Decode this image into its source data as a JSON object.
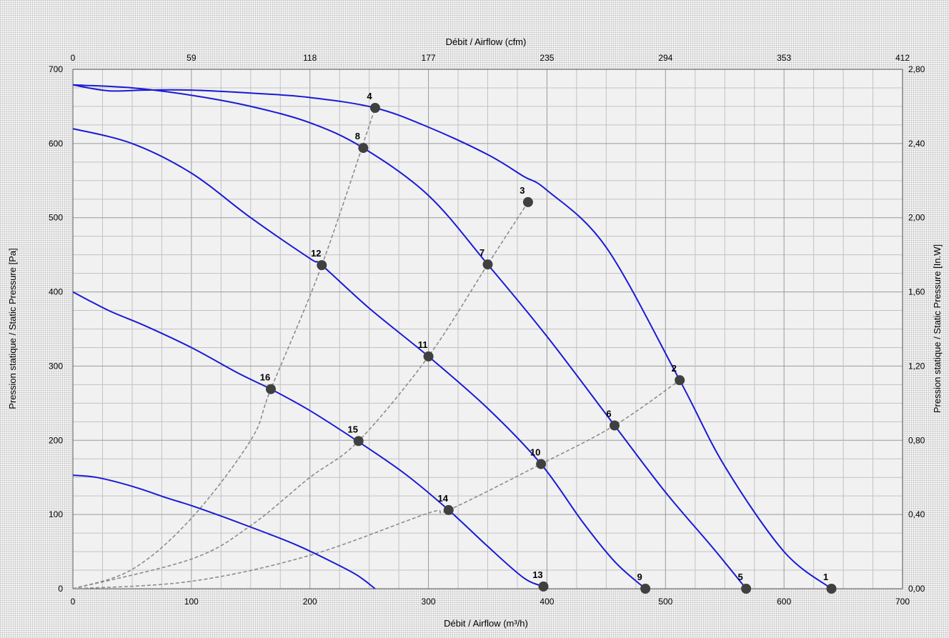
{
  "chart_data": {
    "type": "line",
    "xlabel_bottom": "Débit / Airflow (m³/h)",
    "xlabel_top": "Débit / Airflow (cfm)",
    "ylabel_left": "Pression statique / Static Pressure [Pa]",
    "ylabel_right": "Pression statique / Static Pressure [In.W]",
    "xlim": [
      0,
      700
    ],
    "ylim": [
      0,
      700
    ],
    "x_ticks": [
      "0",
      "100",
      "200",
      "300",
      "400",
      "500",
      "600",
      "700"
    ],
    "y_ticks": [
      "0",
      "100",
      "200",
      "300",
      "400",
      "500",
      "600",
      "700"
    ],
    "top_ticks": [
      "0",
      "59",
      "118",
      "177",
      "235",
      "294",
      "353",
      "412"
    ],
    "right_ticks": [
      "0,00",
      "0,40",
      "0,80",
      "1,20",
      "1,60",
      "2,00",
      "2,40",
      "2,80"
    ],
    "grid": true,
    "series": [
      {
        "values": [
          [
            0,
            679
          ],
          [
            30,
            671
          ],
          [
            60,
            672
          ],
          [
            100,
            672
          ],
          [
            150,
            668
          ],
          [
            200,
            662
          ],
          [
            255,
            648
          ],
          [
            300,
            622
          ],
          [
            350,
            585
          ],
          [
            380,
            556
          ],
          [
            400,
            537
          ],
          [
            450,
            460
          ],
          [
            512,
            281
          ],
          [
            550,
            165
          ],
          [
            600,
            50
          ],
          [
            640,
            0
          ]
        ]
      },
      {
        "values": [
          [
            0,
            679
          ],
          [
            50,
            675
          ],
          [
            100,
            665
          ],
          [
            150,
            650
          ],
          [
            200,
            628
          ],
          [
            245,
            594
          ],
          [
            300,
            530
          ],
          [
            350,
            437
          ],
          [
            400,
            340
          ],
          [
            457,
            220
          ],
          [
            500,
            130
          ],
          [
            540,
            55
          ],
          [
            568,
            0
          ]
        ]
      },
      {
        "values": [
          [
            0,
            620
          ],
          [
            50,
            600
          ],
          [
            100,
            560
          ],
          [
            150,
            500
          ],
          [
            200,
            445
          ],
          [
            210,
            436
          ],
          [
            250,
            378
          ],
          [
            300,
            313
          ],
          [
            350,
            243
          ],
          [
            395,
            168
          ],
          [
            430,
            90
          ],
          [
            458,
            35
          ],
          [
            483,
            0
          ]
        ]
      },
      {
        "values": [
          [
            0,
            400
          ],
          [
            30,
            375
          ],
          [
            60,
            355
          ],
          [
            100,
            325
          ],
          [
            140,
            290
          ],
          [
            167,
            269
          ],
          [
            200,
            240
          ],
          [
            240,
            199
          ],
          [
            280,
            155
          ],
          [
            317,
            106
          ],
          [
            350,
            57
          ],
          [
            380,
            15
          ],
          [
            397,
            3
          ]
        ]
      },
      {
        "values": [
          [
            0,
            153
          ],
          [
            20,
            150
          ],
          [
            50,
            138
          ],
          [
            80,
            122
          ],
          [
            100,
            112
          ],
          [
            130,
            95
          ],
          [
            160,
            77
          ],
          [
            190,
            58
          ],
          [
            220,
            35
          ],
          [
            240,
            18
          ],
          [
            255,
            0
          ]
        ]
      }
    ],
    "system_curves": [
      {
        "points": [
          [
            0,
            0
          ],
          [
            50,
            26
          ],
          [
            100,
            95
          ],
          [
            150,
            200
          ],
          [
            167,
            269
          ],
          [
            210,
            436
          ],
          [
            255,
            648
          ]
        ]
      },
      {
        "points": [
          [
            0,
            0
          ],
          [
            100,
            40
          ],
          [
            150,
            85
          ],
          [
            200,
            150
          ],
          [
            241,
            199
          ],
          [
            300,
            313
          ],
          [
            350,
            437
          ],
          [
            384,
            521
          ]
        ]
      },
      {
        "points": [
          [
            0,
            0
          ],
          [
            100,
            10
          ],
          [
            200,
            45
          ],
          [
            300,
            102
          ],
          [
            317,
            106
          ],
          [
            395,
            168
          ],
          [
            457,
            220
          ],
          [
            512,
            281
          ]
        ]
      }
    ],
    "operating_points": [
      {
        "label": "1",
        "x": 640,
        "y": 0
      },
      {
        "label": "2",
        "x": 512,
        "y": 281
      },
      {
        "label": "3",
        "x": 384,
        "y": 521
      },
      {
        "label": "4",
        "x": 255,
        "y": 648
      },
      {
        "label": "5",
        "x": 568,
        "y": 0
      },
      {
        "label": "6",
        "x": 457,
        "y": 220
      },
      {
        "label": "7",
        "x": 350,
        "y": 437
      },
      {
        "label": "8",
        "x": 245,
        "y": 594
      },
      {
        "label": "9",
        "x": 483,
        "y": 0
      },
      {
        "label": "10",
        "x": 395,
        "y": 168
      },
      {
        "label": "11",
        "x": 300,
        "y": 313
      },
      {
        "label": "12",
        "x": 210,
        "y": 436
      },
      {
        "label": "13",
        "x": 397,
        "y": 3
      },
      {
        "label": "14",
        "x": 317,
        "y": 106
      },
      {
        "label": "15",
        "x": 241,
        "y": 199
      },
      {
        "label": "16",
        "x": 167,
        "y": 269
      }
    ],
    "colors": {
      "fan_curve": "#1a1ad6",
      "system_curve": "#8c8c8c",
      "marker": "#404040",
      "grid": "#9a9a9a"
    }
  }
}
